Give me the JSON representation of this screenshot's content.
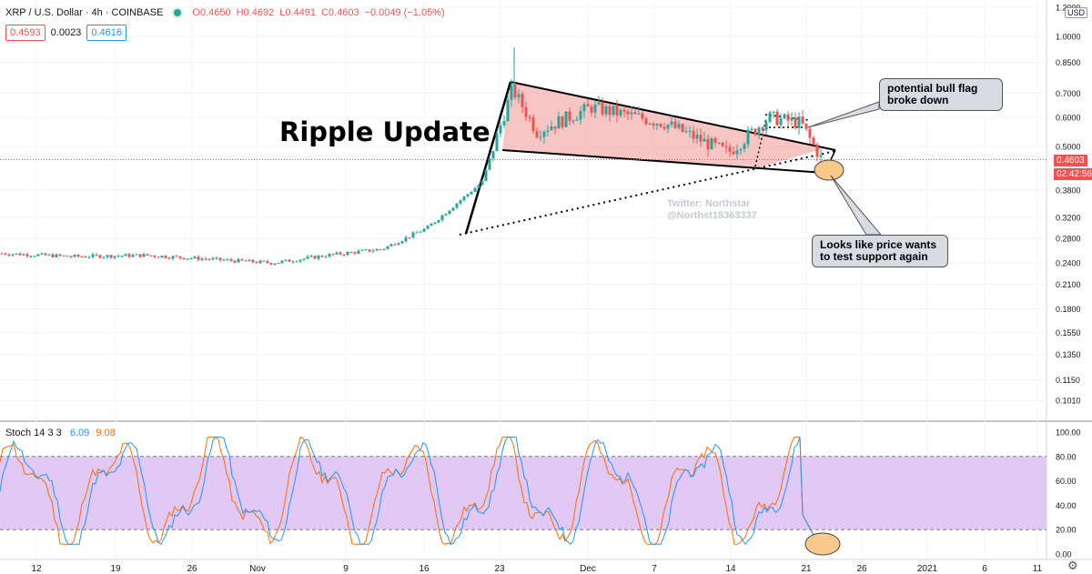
{
  "header": {
    "symbol": "XRP / U.S. Dollar · 4h · COINBASE",
    "open": "O0.4650",
    "high": "H0.4692",
    "low": "L0.4491",
    "close": "C0.4603",
    "change": "−0.0049 (−1.05%)",
    "bid": "0.4593",
    "spread": "0.0023",
    "ask": "0.4616"
  },
  "price_axis": {
    "currency": "USD",
    "ticks": [
      "1.2000",
      "1.0000",
      "0.8500",
      "0.7000",
      "0.6000",
      "0.5000",
      "0.4603",
      "0.3800",
      "0.3200",
      "0.2800",
      "0.2400",
      "0.2100",
      "0.1800",
      "0.1550",
      "0.1350",
      "0.1150",
      "0.1010"
    ],
    "last_price": "0.4603",
    "countdown": "02:42:56"
  },
  "stoch": {
    "label": "Stoch 14 3 3",
    "k": "6.09",
    "d": "9.08",
    "ticks": [
      "100.00",
      "80.00",
      "60.00",
      "40.00",
      "20.00",
      "0.00"
    ]
  },
  "time_axis": {
    "ticks": [
      "12",
      "19",
      "26",
      "Nov",
      "9",
      "16",
      "23",
      "Dec",
      "7",
      "14",
      "21",
      "26",
      "2021",
      "6",
      "11"
    ]
  },
  "annotations": {
    "title": "Ripple Update",
    "bull_flag": "potential bull flag broke down",
    "support": "Looks like price wants to test support again",
    "watermark_line1": "Twitter: Northstar",
    "watermark_line2": "@Northst18363337"
  },
  "colors": {
    "up": "#26a69a",
    "down": "#ef5350",
    "pattern_fill": "#f4a6a6",
    "stoch_band": "#e1c8f5",
    "stoch_k": "#2196f3",
    "stoch_d": "#ff6d00",
    "highlight": "#f8c98a"
  },
  "chart_data": {
    "type": "line",
    "title": "Ripple Update",
    "symbol": "XRP / U.S. Dollar",
    "interval": "4h",
    "scale": "log",
    "ylim": [
      0.095,
      1.3
    ],
    "price_path": [
      {
        "x": "Oct 8",
        "y": 0.255
      },
      {
        "x": "Oct 15",
        "y": 0.25
      },
      {
        "x": "Oct 22",
        "y": 0.252
      },
      {
        "x": "Oct 29",
        "y": 0.245
      },
      {
        "x": "Nov 5",
        "y": 0.24
      },
      {
        "x": "Nov 9",
        "y": 0.252
      },
      {
        "x": "Nov 14",
        "y": 0.262
      },
      {
        "x": "Nov 18",
        "y": 0.3
      },
      {
        "x": "Nov 21",
        "y": 0.4
      },
      {
        "x": "Nov 24",
        "y": 0.72
      },
      {
        "x": "Nov 26",
        "y": 0.55
      },
      {
        "x": "Dec 1",
        "y": 0.64
      },
      {
        "x": "Dec 7",
        "y": 0.58
      },
      {
        "x": "Dec 13",
        "y": 0.48
      },
      {
        "x": "Dec 17",
        "y": 0.6
      },
      {
        "x": "Dec 20",
        "y": 0.58
      },
      {
        "x": "Dec 22",
        "y": 0.46
      }
    ],
    "stochastic": {
      "name": "Stoch 14 3 3",
      "ylim": [
        0,
        100
      ],
      "bands": [
        20,
        80
      ],
      "k_last": 6.09,
      "d_last": 9.08
    },
    "legend": "none",
    "grid": true
  }
}
